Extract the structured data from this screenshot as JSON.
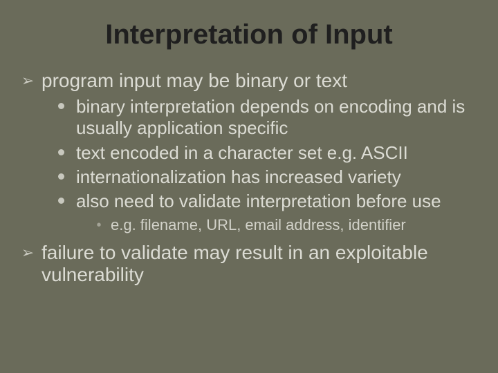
{
  "colors": {
    "background": "#6a6b5a",
    "title": "#1f1f1f",
    "body_text": "#dcdcd4",
    "bullet_arrow": "#c8c8be",
    "bullet_dot": "#c8c8be",
    "bullet_sub": "#a3a396"
  },
  "fonts": {
    "title_size_pt": 40,
    "level1_size_pt": 28,
    "level2_size_pt": 26,
    "level3_size_pt": 22,
    "family": "Arial"
  },
  "slide": {
    "title": "Interpretation of Input",
    "bullets": {
      "l1_0": "program input may be binary or text",
      "l2_0": "binary interpretation depends on encoding and is usually application specific",
      "l2_1": "text encoded in a character set e.g. ASCII",
      "l2_2": "internationalization has increased variety",
      "l2_3": "also need to validate interpretation before use",
      "l3_0": "e.g. filename, URL, email address, identifier",
      "l1_1": "failure to validate may result in an exploitable vulnerability"
    },
    "glyphs": {
      "arrow": "➢",
      "sub": "•"
    }
  }
}
